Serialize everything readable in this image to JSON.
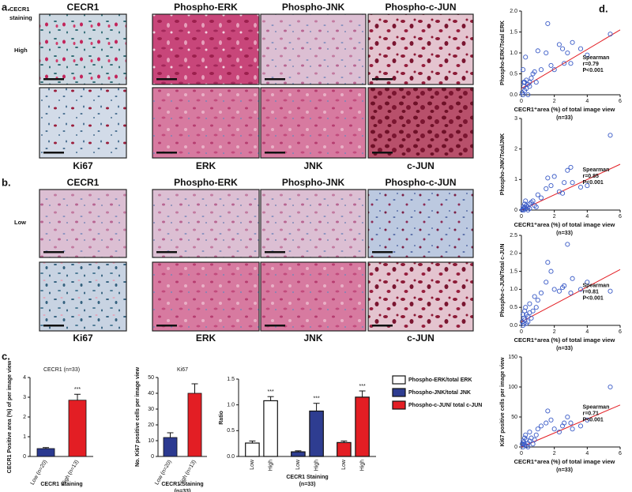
{
  "figure": {
    "panel_a": {
      "label": "a.",
      "staining_label": [
        "CECR1",
        "staining"
      ],
      "row_label": "High",
      "top_labels": [
        "CECR1",
        "Phospho-ERK",
        "Phospho-JNK",
        "Phospho-c-JUN"
      ],
      "bottom_labels": [
        "Ki67",
        "ERK",
        "JNK",
        "c-JUN"
      ]
    },
    "panel_b": {
      "label": "b.",
      "row_label": "Low",
      "top_labels": [
        "CECR1",
        "Phospho-ERK",
        "Phospho-JNK",
        "Phospho-c-JUN"
      ],
      "bottom_labels": [
        "Ki67",
        "ERK",
        "JNK",
        "c-JUN"
      ]
    },
    "panel_c_label": "c.",
    "panel_d_label": "d."
  },
  "chart_data": [
    {
      "type": "bar",
      "title": "CECR1 (n=33)",
      "y_label": "CECR1 Positive area (%) of per image view",
      "x_label": [
        "CECR1 Staining"
      ],
      "categories": [
        "Low (n=20)",
        "High (n=13)"
      ],
      "values": [
        0.4,
        2.85
      ],
      "errors": [
        0.05,
        0.3
      ],
      "colors": [
        "#2b3990",
        "#e31e24"
      ],
      "significance": [
        null,
        "***"
      ],
      "ylim": [
        0,
        4
      ],
      "yticks": [
        0,
        1,
        2,
        3,
        4
      ]
    },
    {
      "type": "bar",
      "title": "Ki67",
      "y_label": "No. Ki67 positive cells per image view",
      "x_label": [
        "CECR1 Staining",
        "(n=33)"
      ],
      "categories": [
        "Low (n=20)",
        "High (n=13)"
      ],
      "values": [
        12,
        40
      ],
      "errors": [
        3,
        6
      ],
      "colors": [
        "#2b3990",
        "#e31e24"
      ],
      "significance": [
        null,
        null
      ],
      "ylim": [
        0,
        50
      ],
      "yticks": [
        0,
        10,
        20,
        30,
        40,
        50
      ]
    },
    {
      "type": "grouped_bar",
      "y_label": "Ratio",
      "x_label": [
        "CECR1 Staining",
        "(n=33)"
      ],
      "categories": [
        "Low",
        "High"
      ],
      "series": [
        {
          "name": "Phospho-ERK/total ERK",
          "color": "#ffffff",
          "values": [
            0.26,
            1.08
          ],
          "errors": [
            0.04,
            0.08
          ],
          "significance": [
            null,
            "***"
          ]
        },
        {
          "name": "Phospho-JNK/total JNK",
          "color": "#2e3d91",
          "values": [
            0.09,
            0.88
          ],
          "errors": [
            0.02,
            0.15
          ],
          "significance": [
            null,
            "***"
          ]
        },
        {
          "name": "Phospho-c-JUN/ total c-JUN",
          "color": "#e31e24",
          "values": [
            0.27,
            1.15
          ],
          "errors": [
            0.03,
            0.12
          ],
          "significance": [
            null,
            "***"
          ]
        }
      ],
      "ylim": [
        0,
        1.5
      ],
      "yticks": [
        {
          "value": 0,
          "label": "0.0"
        },
        0.5,
        {
          "value": 1,
          "label": "1.0"
        },
        1.5
      ]
    },
    {
      "type": "scatter",
      "y_label": "Phospho-ERK/Total ERK",
      "x_label": "CECR1⁺area (%) of total image view",
      "x_note": "(n=33)",
      "annotation": [
        "Spearman",
        "r=0.79",
        "P<0.001"
      ],
      "color": "#3a5bc7",
      "x": [
        0.05,
        0.1,
        0.1,
        0.15,
        0.2,
        0.2,
        0.25,
        0.3,
        0.3,
        0.4,
        0.4,
        0.5,
        0.5,
        0.6,
        0.7,
        0.8,
        0.9,
        1.0,
        1.2,
        1.5,
        1.6,
        1.8,
        2.0,
        2.3,
        2.5,
        2.6,
        2.8,
        3.0,
        3.1,
        3.6,
        4.0,
        5.4,
        0.15
      ],
      "y": [
        0.05,
        0.0,
        0.6,
        0.2,
        0.1,
        0.3,
        0.9,
        0.15,
        0.35,
        0.25,
        0.0,
        0.2,
        0.3,
        0.4,
        0.5,
        0.55,
        0.3,
        1.05,
        0.6,
        1.0,
        1.7,
        0.7,
        0.6,
        1.2,
        1.1,
        0.75,
        1.0,
        0.75,
        1.25,
        1.1,
        0.95,
        1.45,
        0.3
      ],
      "trendline": {
        "x": [
          0,
          6
        ],
        "y": [
          0.15,
          1.55
        ],
        "color": "#e31e24"
      },
      "xlim": [
        0,
        6
      ],
      "xticks": [
        0,
        2,
        4,
        6
      ],
      "ylim": [
        0,
        2
      ],
      "yticks": [
        {
          "value": 0,
          "label": "0.0"
        },
        0.5,
        {
          "value": 1,
          "label": "1.0"
        },
        1.5,
        {
          "value": 2,
          "label": "2.0"
        }
      ]
    },
    {
      "type": "scatter",
      "y_label": "Phospho-JNK/TotalJNK",
      "x_label": "CECR1⁺area (%) of total image view",
      "x_note": "(n=33)",
      "annotation": [
        "Spearman",
        "r=0.85",
        "P<0.001"
      ],
      "color": "#3a5bc7",
      "x": [
        0.05,
        0.1,
        0.1,
        0.15,
        0.2,
        0.2,
        0.25,
        0.3,
        0.3,
        0.4,
        0.4,
        0.5,
        0.5,
        0.6,
        0.7,
        0.8,
        0.9,
        1.0,
        1.2,
        1.5,
        1.6,
        1.8,
        2.0,
        2.3,
        2.5,
        2.6,
        2.8,
        3.0,
        3.1,
        3.6,
        4.0,
        5.4,
        0.15
      ],
      "y": [
        0.0,
        0.02,
        0.1,
        0.05,
        0.2,
        0.1,
        0.3,
        0.05,
        0.15,
        0.0,
        0.1,
        0.2,
        0.05,
        0.25,
        0.3,
        0.15,
        0.1,
        0.5,
        0.4,
        0.7,
        1.05,
        0.8,
        1.1,
        0.6,
        0.55,
        0.9,
        1.3,
        1.4,
        0.9,
        0.75,
        0.8,
        2.45,
        0.0
      ],
      "trendline": {
        "x": [
          0,
          6
        ],
        "y": [
          0.0,
          1.5
        ],
        "color": "#e31e24"
      },
      "xlim": [
        0,
        6
      ],
      "xticks": [
        0,
        2,
        4,
        6
      ],
      "ylim": [
        0,
        3
      ],
      "yticks": [
        0,
        1,
        2,
        3
      ]
    },
    {
      "type": "scatter",
      "y_label": "Phospho-c-JUN/Total c-JUN",
      "x_label": "CECR1⁺area (%) of total image view",
      "x_note": "(n=33)",
      "annotation": [
        "Spearman",
        "r=0.81",
        "P<0.001"
      ],
      "color": "#3a5bc7",
      "x": [
        0.05,
        0.1,
        0.1,
        0.15,
        0.2,
        0.2,
        0.25,
        0.3,
        0.3,
        0.4,
        0.4,
        0.5,
        0.5,
        0.6,
        0.7,
        0.8,
        0.9,
        1.0,
        1.2,
        1.5,
        1.6,
        1.8,
        2.0,
        2.3,
        2.5,
        2.6,
        2.8,
        3.0,
        3.1,
        3.6,
        4.0,
        5.4,
        0.15
      ],
      "y": [
        0.1,
        0.0,
        0.3,
        0.2,
        0.4,
        0.15,
        0.5,
        0.05,
        0.3,
        0.25,
        0.1,
        0.6,
        0.35,
        0.2,
        0.4,
        0.8,
        0.5,
        0.7,
        0.9,
        1.2,
        1.75,
        1.5,
        1.0,
        0.95,
        1.05,
        1.1,
        2.25,
        0.9,
        1.3,
        1.0,
        1.2,
        0.95,
        0.05
      ],
      "trendline": {
        "x": [
          0,
          6
        ],
        "y": [
          0.1,
          1.55
        ],
        "color": "#e31e24"
      },
      "xlim": [
        0,
        6
      ],
      "xticks": [
        0,
        2,
        4,
        6
      ],
      "ylim": [
        0,
        2.5
      ],
      "yticks": [
        {
          "value": 0,
          "label": "0.0"
        },
        0.5,
        {
          "value": 1,
          "label": "1.0"
        },
        1.5,
        {
          "value": 2,
          "label": "2.0"
        },
        2.5
      ]
    },
    {
      "type": "scatter",
      "y_label": "Ki67 positive cells per image view",
      "x_label": "CECR1⁺area (%) of total image view",
      "x_note": "(n=33)",
      "annotation": [
        "Spearman",
        "r=0.71",
        "P<0.001"
      ],
      "color": "#3a5bc7",
      "x": [
        0.05,
        0.1,
        0.1,
        0.15,
        0.2,
        0.2,
        0.25,
        0.3,
        0.3,
        0.4,
        0.4,
        0.5,
        0.5,
        0.6,
        0.7,
        0.8,
        0.9,
        1.0,
        1.2,
        1.5,
        1.6,
        1.8,
        2.0,
        2.3,
        2.5,
        2.6,
        2.8,
        3.0,
        3.1,
        3.6,
        4.0,
        5.4,
        0.15
      ],
      "y": [
        5,
        0,
        10,
        8,
        15,
        3,
        20,
        2,
        12,
        6,
        0,
        10,
        25,
        15,
        5,
        12,
        20,
        30,
        35,
        40,
        60,
        45,
        30,
        25,
        35,
        40,
        50,
        40,
        30,
        35,
        45,
        100,
        5
      ],
      "trendline": {
        "x": [
          0,
          6
        ],
        "y": [
          0,
          70
        ],
        "color": "#e31e24"
      },
      "xlim": [
        0,
        6
      ],
      "xticks": [
        0,
        2,
        4,
        6
      ],
      "ylim": [
        0,
        150
      ],
      "yticks": [
        0,
        50,
        100,
        150
      ]
    }
  ]
}
